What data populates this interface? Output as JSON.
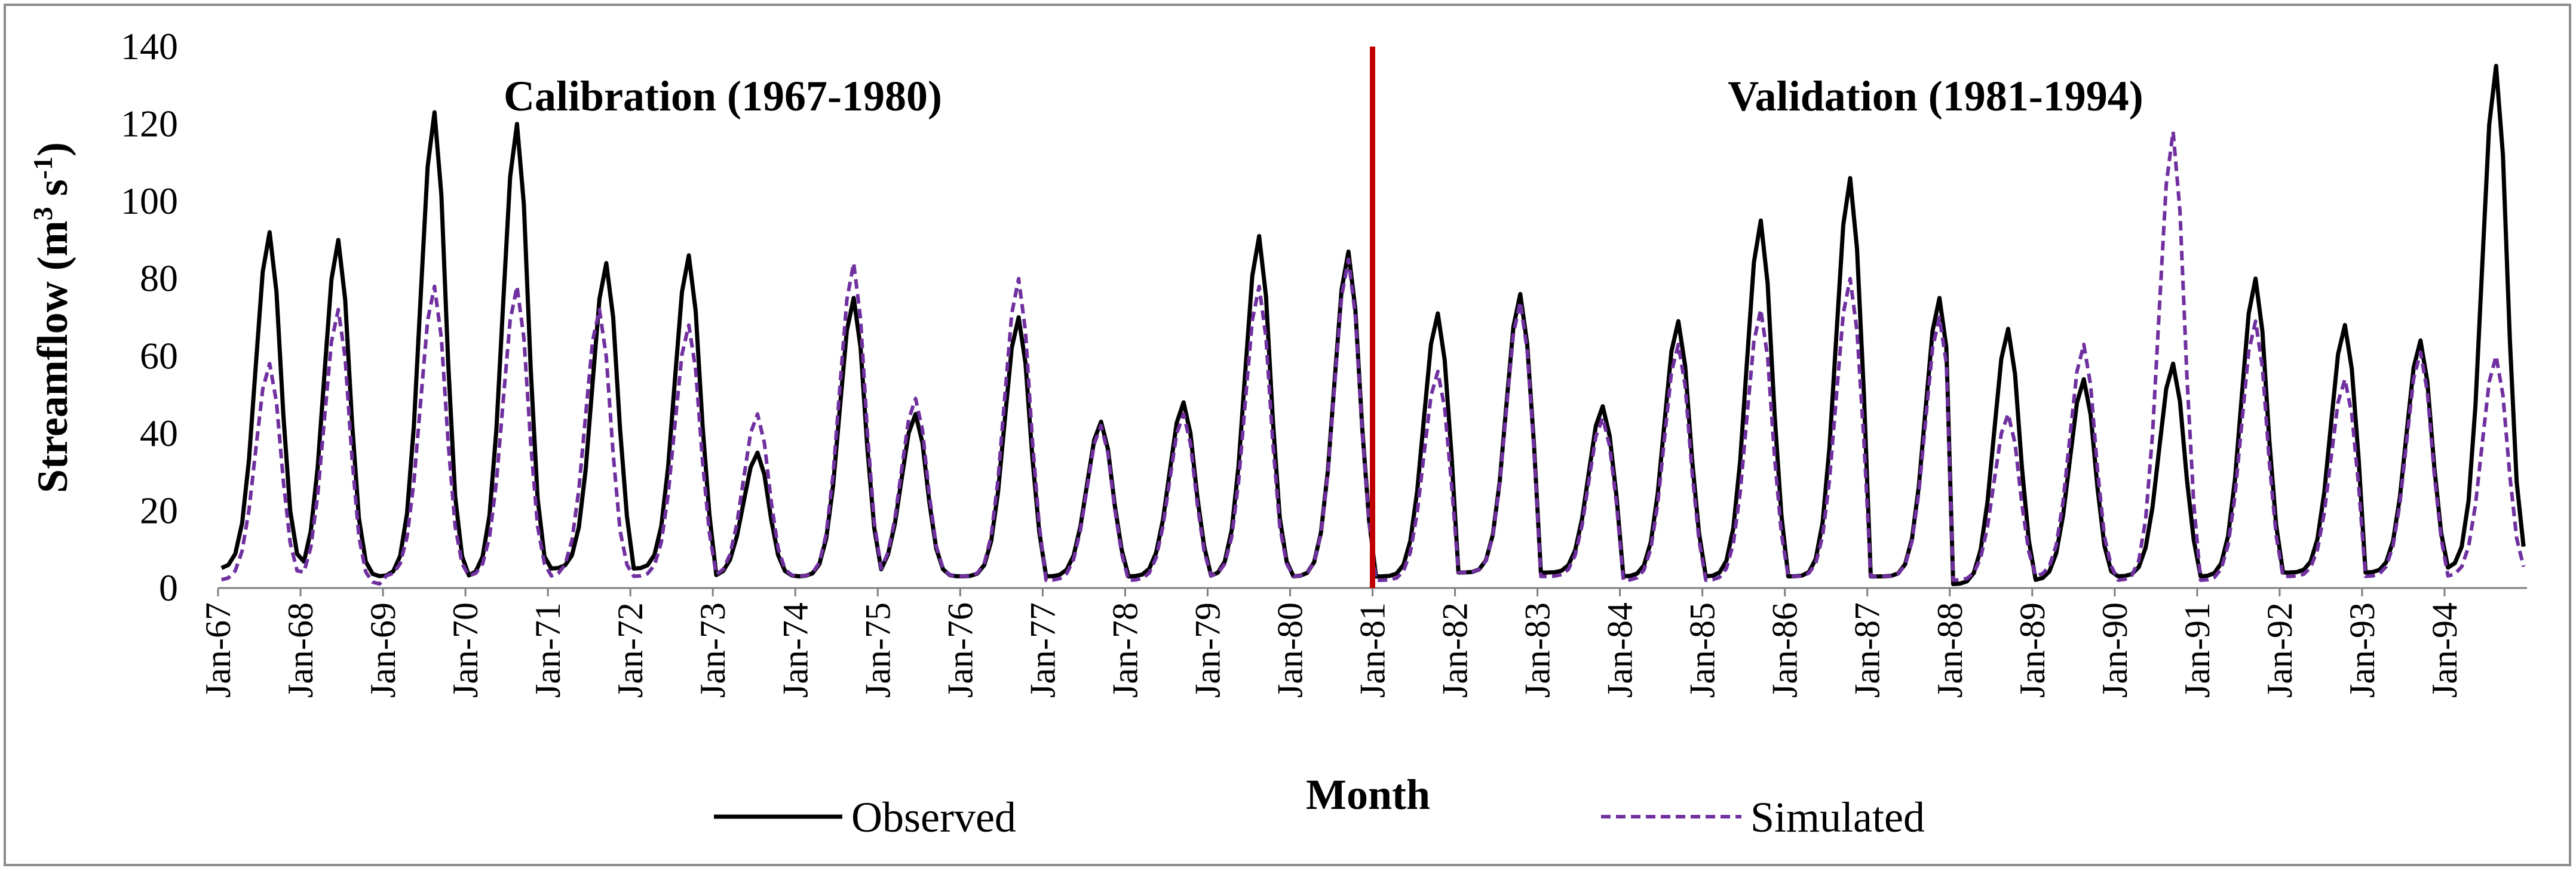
{
  "chart_data": {
    "type": "line",
    "title": "",
    "xlabel": "Month",
    "ylabel_parts": [
      "Streamflow (m",
      "3",
      " s",
      "-1",
      ")"
    ],
    "ylim": [
      0,
      140
    ],
    "y_ticks": [
      0,
      20,
      40,
      60,
      80,
      100,
      120,
      140
    ],
    "x_tick_labels": [
      "Jan-67",
      "Jan-68",
      "Jan-69",
      "Jan-70",
      "Jan-71",
      "Jan-72",
      "Jan-73",
      "Jan-74",
      "Jan-75",
      "Jan-76",
      "Jan-77",
      "Jan-78",
      "Jan-79",
      "Jan-80",
      "Jan-81",
      "Jan-82",
      "Jan-83",
      "Jan-84",
      "Jan-85",
      "Jan-86",
      "Jan-87",
      "Jan-88",
      "Jan-89",
      "Jan-90",
      "Jan-91",
      "Jan-92",
      "Jan-93",
      "Jan-94"
    ],
    "start_year": 1967,
    "months_per_year": 12,
    "split_index": 168,
    "annotations": [
      {
        "text": "Calibration (1967-1980)"
      },
      {
        "text": "Validation (1981-1994)"
      }
    ],
    "series": [
      {
        "name": "Observed",
        "color": "#000000",
        "style": "solid",
        "peak_month": [
          7,
          5,
          7,
          7,
          8,
          8,
          6,
          8,
          5,
          8,
          8,
          8,
          7,
          8,
          9,
          9,
          9,
          8,
          8,
          9,
          10,
          8,
          7,
          8,
          8,
          9,
          8,
          7
        ],
        "peak_value": [
          92,
          90,
          123,
          120,
          84,
          86,
          35,
          75,
          45,
          70,
          43,
          48,
          91,
          87,
          71,
          76,
          47,
          69,
          95,
          106,
          75,
          67,
          54,
          58,
          80,
          68,
          64,
          135
        ],
        "base_min": [
          5,
          3,
          3,
          3,
          5,
          5,
          3,
          3,
          3,
          3,
          3,
          3,
          3,
          3,
          3,
          4,
          4,
          3,
          3,
          3,
          3,
          1,
          2,
          3,
          3,
          4,
          4,
          5
        ]
      },
      {
        "name": "Simulated",
        "color": "#7030a0",
        "style": "dashed",
        "peak_month": [
          7,
          5,
          7,
          7,
          7,
          8,
          6,
          8,
          5,
          8,
          8,
          8,
          7,
          8,
          9,
          9,
          9,
          8,
          8,
          9,
          10,
          8,
          7,
          8,
          8,
          9,
          8,
          7
        ],
        "peak_value": [
          58,
          72,
          78,
          78,
          72,
          68,
          45,
          84,
          49,
          80,
          42,
          45,
          78,
          85,
          56,
          74,
          44,
          63,
          72,
          80,
          70,
          45,
          63,
          118,
          69,
          54,
          61,
          60
        ],
        "base_min": [
          2,
          1,
          3,
          3,
          3,
          3,
          3,
          3,
          3,
          3,
          2,
          2,
          3,
          3,
          2,
          4,
          3,
          2,
          2,
          3,
          3,
          2,
          3,
          2,
          2,
          3,
          3,
          3
        ]
      }
    ],
    "legend": {
      "position": "bottom"
    }
  },
  "colors": {
    "divider": "#c00000",
    "frame": "#8c8c8c",
    "observed": "#000000",
    "simulated": "#7030a0"
  }
}
